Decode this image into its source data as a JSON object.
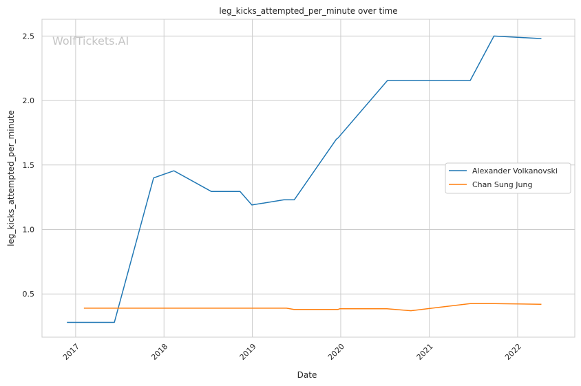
{
  "watermark": "WolfTickets.AI",
  "chart_data": {
    "type": "line",
    "title": "leg_kicks_attempted_per_minute over time",
    "xlabel": "Date",
    "ylabel": "leg_kicks_attempted_per_minute",
    "xlim": [
      "2016-08-15",
      "2022-08-25"
    ],
    "ylim": [
      0.165,
      2.63
    ],
    "grid": true,
    "legend_position": "center-right",
    "x_tick_labels": [
      "2017",
      "2018",
      "2019",
      "2020",
      "2021",
      "2022"
    ],
    "x_ticks": [
      "2017-01-01",
      "2018-01-01",
      "2019-01-01",
      "2020-01-01",
      "2021-01-01",
      "2022-01-01"
    ],
    "y_tick_labels": [
      "0.5",
      "1.0",
      "1.5",
      "2.0",
      "2.5"
    ],
    "y_ticks": [
      0.5,
      1.0,
      1.5,
      2.0,
      2.5
    ],
    "series": [
      {
        "name": "Alexander Volkanovski",
        "color": "#1f77b4",
        "x": [
          "2016-11-26",
          "2017-06-10",
          "2017-11-19",
          "2018-02-11",
          "2018-07-15",
          "2018-11-11",
          "2018-12-30",
          "2019-05-11",
          "2019-06-23",
          "2019-12-14",
          "2019-12-21",
          "2020-07-12",
          "2021-06-19",
          "2021-09-25",
          "2022-04-09"
        ],
        "y": [
          0.28,
          0.28,
          1.4,
          1.455,
          1.295,
          1.295,
          1.19,
          1.23,
          1.23,
          1.7,
          1.71,
          2.155,
          2.155,
          2.5,
          2.48
        ]
      },
      {
        "name": "Chan Sung Jung",
        "color": "#ff7f0e",
        "x": [
          "2017-02-04",
          "2019-05-22",
          "2019-06-22",
          "2019-12-21",
          "2019-12-28",
          "2020-07-10",
          "2020-10-17",
          "2021-06-19",
          "2021-09-25",
          "2022-04-09"
        ],
        "y": [
          0.39,
          0.39,
          0.38,
          0.38,
          0.385,
          0.385,
          0.37,
          0.425,
          0.425,
          0.42
        ]
      }
    ]
  }
}
